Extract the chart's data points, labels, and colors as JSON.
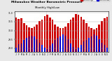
{
  "title": "Milwaukee Weather Barometric Pressure",
  "subtitle": "Monthly High/Low",
  "legend_high": "Record High",
  "legend_low": "Record Low",
  "months": [
    "J",
    "F",
    "M",
    "A",
    "M",
    "J",
    "J",
    "A",
    "S",
    "O",
    "N",
    "D",
    "J",
    "F",
    "M",
    "A",
    "M",
    "J",
    "J",
    "A",
    "S",
    "O",
    "N",
    "D",
    "J",
    "F",
    "M",
    "A",
    "M",
    "J",
    "J",
    "A",
    "S",
    "O",
    "N",
    "D"
  ],
  "highs": [
    30.72,
    30.65,
    30.68,
    30.42,
    30.28,
    30.18,
    30.15,
    30.22,
    30.32,
    30.52,
    30.62,
    30.82,
    30.88,
    30.72,
    30.62,
    30.35,
    30.22,
    30.12,
    30.12,
    30.22,
    30.42,
    30.62,
    30.72,
    30.92,
    30.88,
    30.78,
    30.62,
    30.42,
    30.22,
    30.12,
    30.05,
    30.12,
    30.32,
    30.52,
    30.68,
    30.78
  ],
  "lows": [
    29.05,
    29.22,
    29.28,
    29.48,
    29.58,
    29.68,
    29.72,
    29.68,
    29.52,
    29.32,
    29.18,
    29.05,
    28.95,
    29.15,
    29.28,
    29.48,
    29.58,
    29.68,
    29.78,
    29.72,
    29.52,
    29.28,
    29.08,
    28.95,
    29.02,
    29.18,
    29.38,
    29.48,
    29.58,
    29.68,
    29.78,
    29.72,
    29.52,
    29.32,
    29.18,
    29.05
  ],
  "high_color": "#cc0000",
  "low_color": "#0000cc",
  "bg_color": "#e8e8e8",
  "plot_bg": "#ffffff",
  "ylim_min": 28.8,
  "ylim_max": 31.1,
  "yticks": [
    29.0,
    29.5,
    30.0,
    30.5,
    31.0
  ],
  "dotted_lines": [
    12,
    24
  ],
  "title_color": "#000000",
  "grid_color": "#aaaaaa"
}
